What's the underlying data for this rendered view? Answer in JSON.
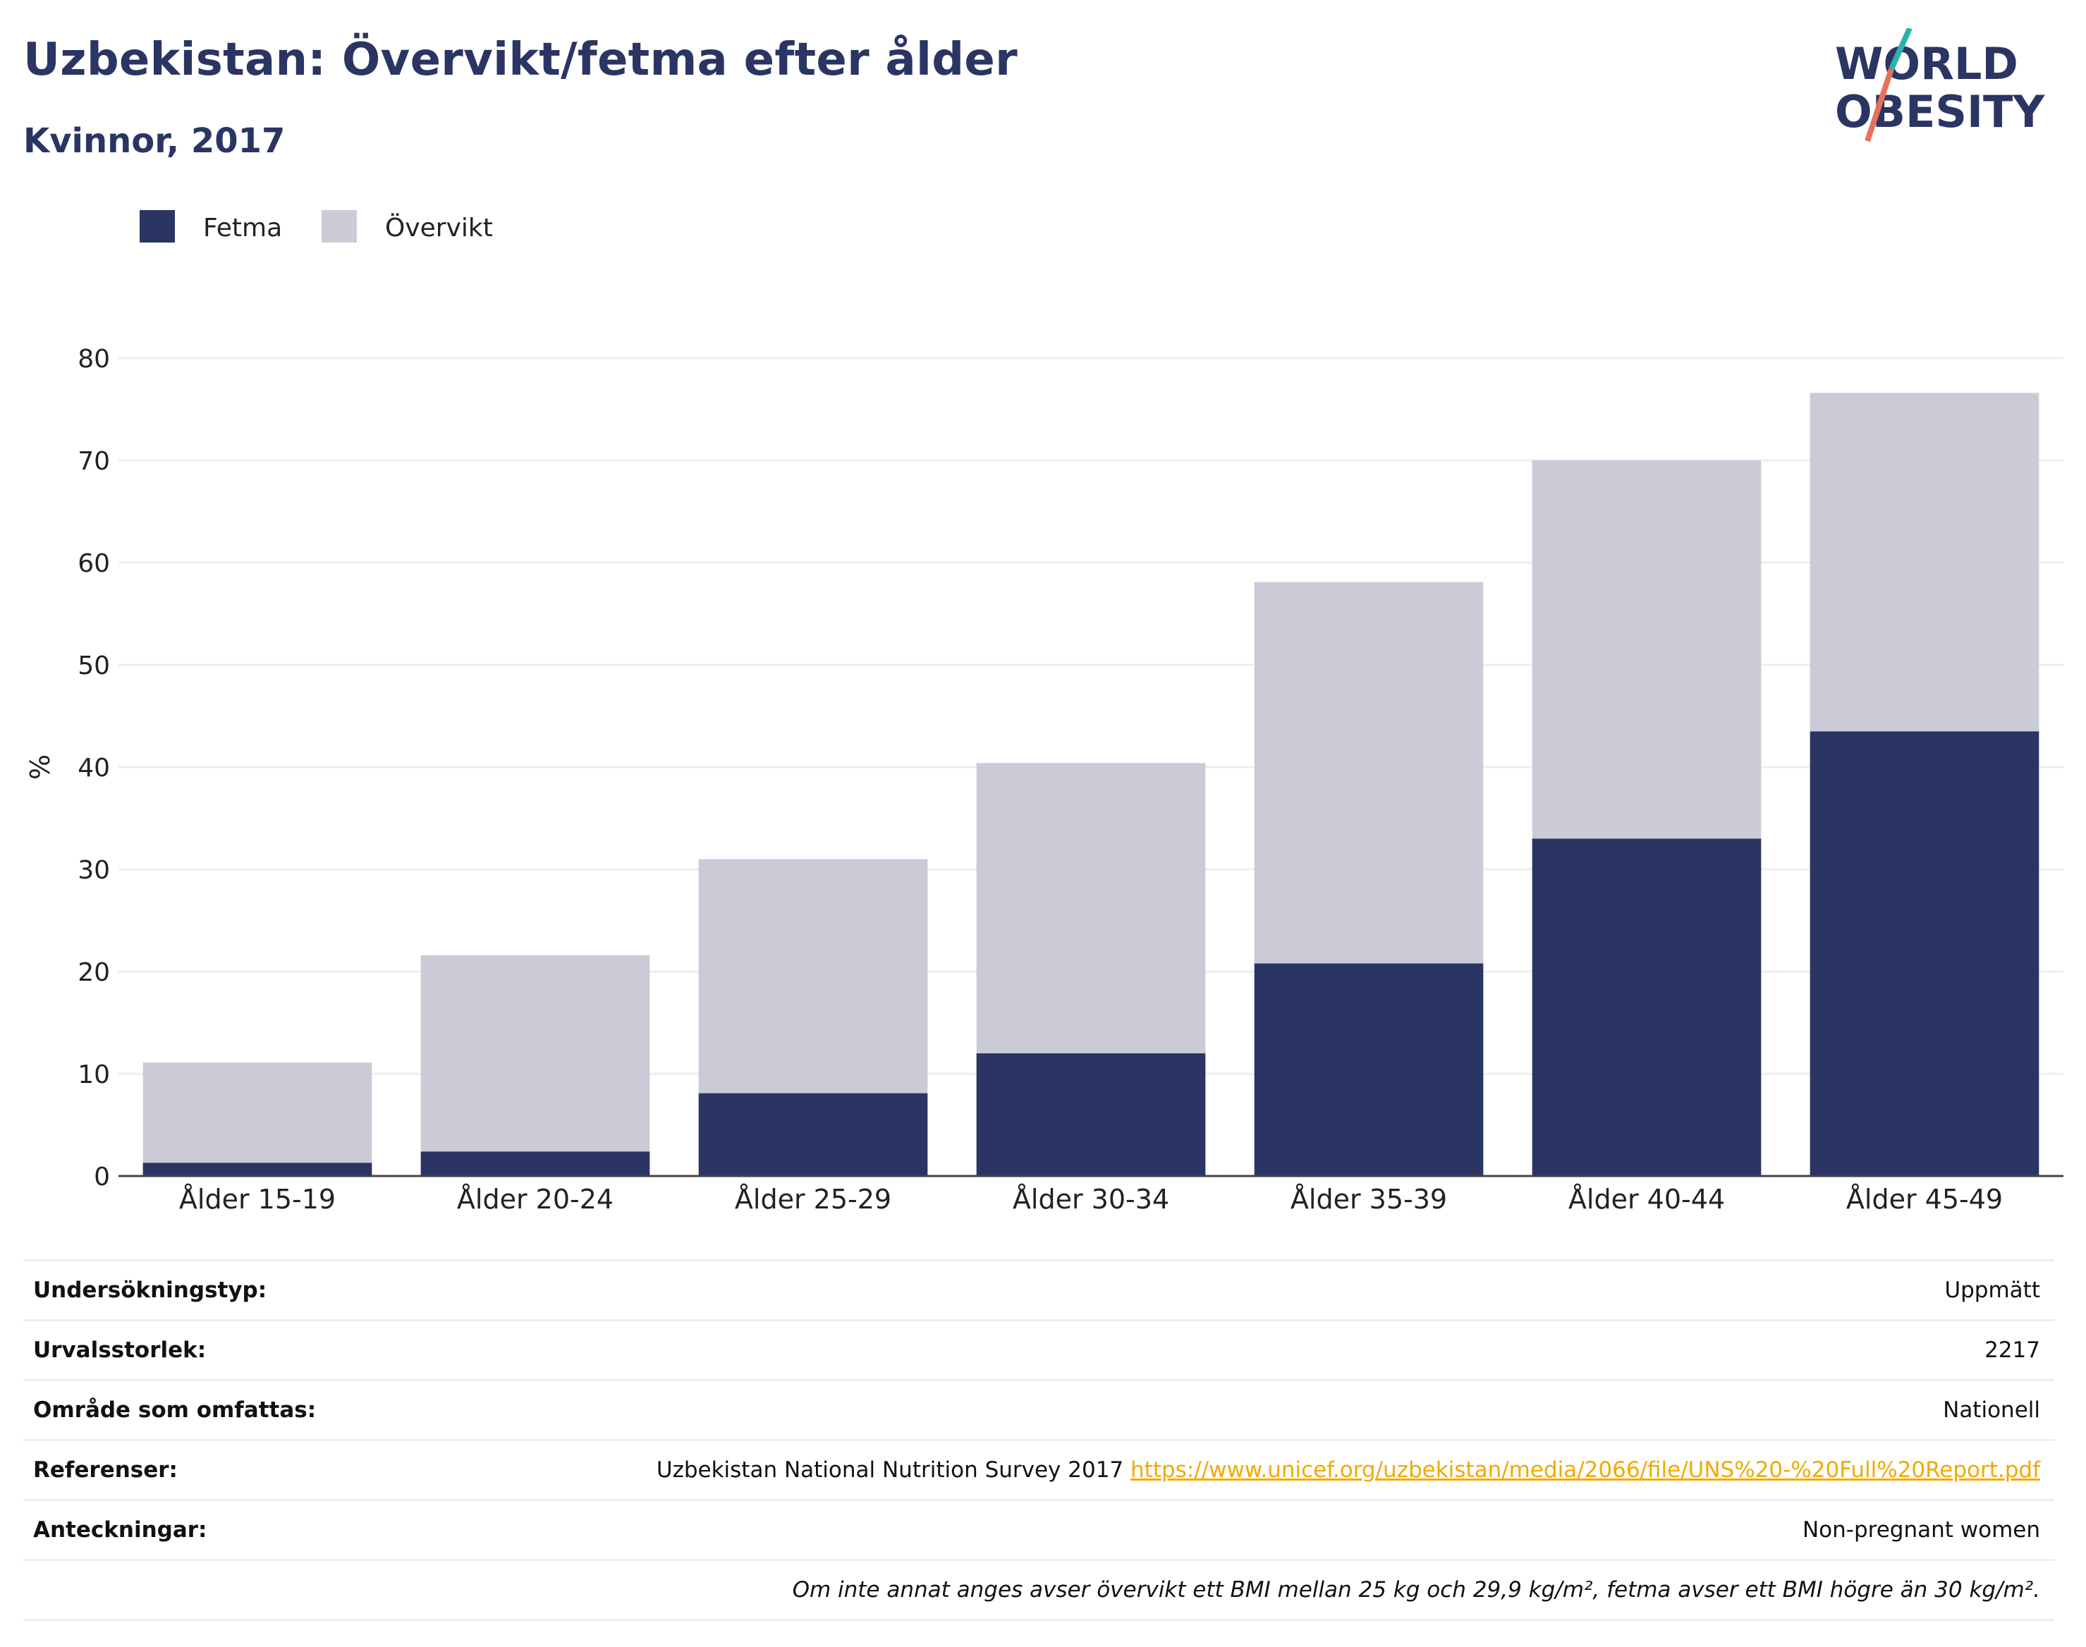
{
  "header": {
    "title": "Uzbekistan: Övervikt/fetma efter ålder",
    "subtitle": "Kvinnor, 2017",
    "logo_text_line1": "WORLD",
    "logo_text_line2": "OBESITY"
  },
  "colors": {
    "fetma": "#2a3563",
    "overvikt": "#cacbd7",
    "title": "#2a3563",
    "link": "#f2a900",
    "logo_slash_top": "#2bb3a8",
    "logo_slash_bottom": "#e8705e"
  },
  "chart_data": {
    "type": "bar",
    "stacked": true,
    "title": "Uzbekistan: Övervikt/fetma efter ålder",
    "subtitle": "Kvinnor, 2017",
    "xlabel": "",
    "ylabel": "%",
    "ylim": [
      0,
      80
    ],
    "yticks": [
      0,
      10,
      20,
      30,
      40,
      50,
      60,
      70,
      80
    ],
    "grid": true,
    "legend_position": "top-left",
    "categories": [
      "Ålder 15-19",
      "Ålder 20-24",
      "Ålder 25-29",
      "Ålder 30-34",
      "Ålder 35-39",
      "Ålder 40-44",
      "Ålder 45-49"
    ],
    "series": [
      {
        "name": "Fetma",
        "color": "#2a3563",
        "values": [
          1.3,
          2.4,
          8.1,
          12.0,
          20.8,
          33.0,
          43.5
        ]
      },
      {
        "name": "Övervikt",
        "color": "#cacbd7",
        "values": [
          9.8,
          19.2,
          22.9,
          28.4,
          37.3,
          37.0,
          33.1
        ]
      }
    ]
  },
  "info_table": [
    {
      "label": "Undersökningstyp:",
      "value": "Uppmätt"
    },
    {
      "label": "Urvalsstorlek:",
      "value": "2217"
    },
    {
      "label": "Område som omfattas:",
      "value": "Nationell"
    },
    {
      "label": "Referenser:",
      "value": "Uzbekistan National Nutrition Survey 2017",
      "link": "https://www.unicef.org/uzbekistan/media/2066/file/UNS%20-%20Full%20Report.pdf"
    },
    {
      "label": "Anteckningar:",
      "value": "Non-pregnant women"
    }
  ],
  "footnote": "Om inte annat anges avser övervikt ett BMI mellan 25 kg och 29,9 kg/m², fetma avser ett BMI högre än 30 kg/m²."
}
